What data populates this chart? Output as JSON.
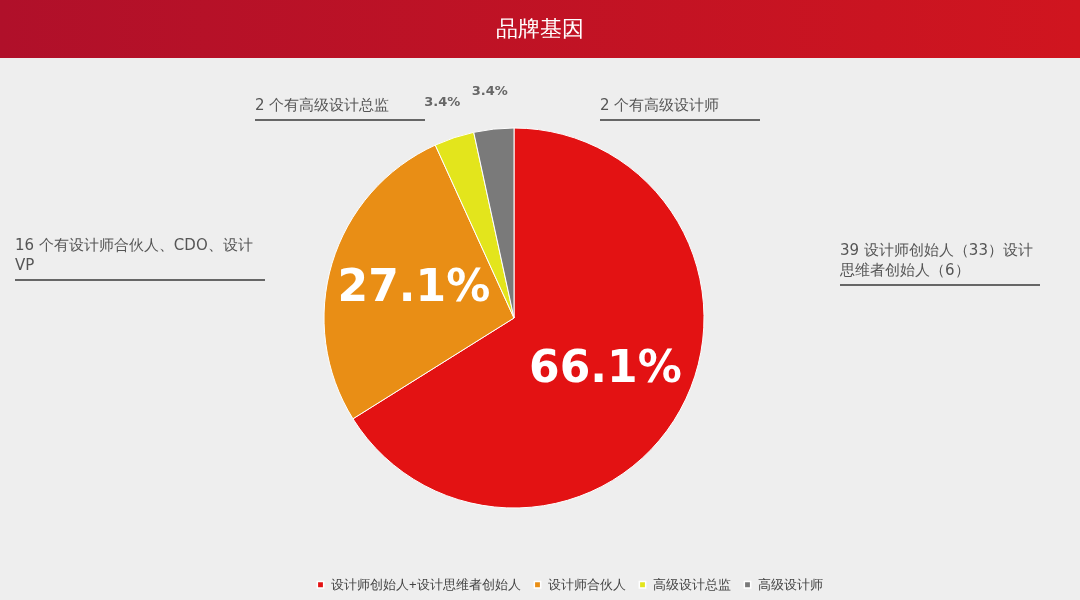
{
  "chart_data": {
    "type": "pie",
    "title": "品牌基因",
    "categories": [
      "设计师创始人+设计思维者创始人",
      "设计师合伙人",
      "高级设计总监",
      "高级设计师"
    ],
    "values": [
      66.1,
      27.1,
      3.4,
      3.4
    ],
    "colors": [
      "#e31213",
      "#e98e15",
      "#e3e51c",
      "#7a7a7a"
    ],
    "value_labels": [
      "66.1%",
      "27.1%",
      "3.4%",
      "3.4%"
    ],
    "legend": "bottom",
    "annotations": [
      "39 设计师创始人（33）设计思维者创始人（6）",
      "16 个有设计师合伙人、CDO、设计VP",
      "2 个有高级设计总监",
      "2 个有高级设计师"
    ]
  }
}
